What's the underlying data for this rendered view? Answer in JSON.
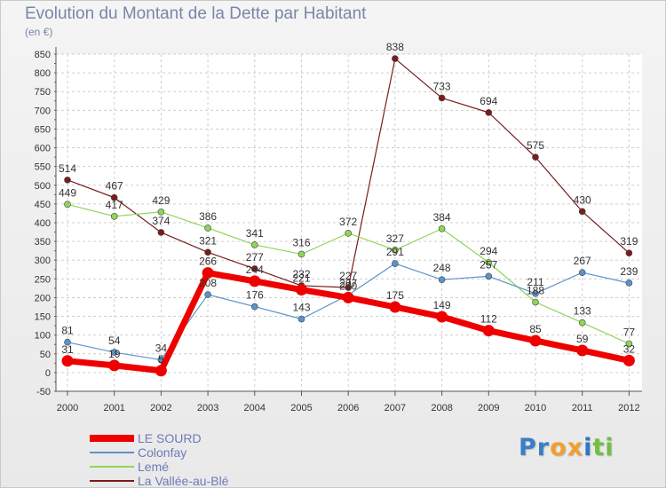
{
  "title": "Evolution du Montant de la Dette par Habitant",
  "unit_label": "(en €)",
  "brand": {
    "letters": [
      "P",
      "r",
      "o",
      "x",
      "i",
      "t",
      "i"
    ],
    "colors": [
      "#3a7ec8",
      "#3a7ec8",
      "#f0a030",
      "#f0a030",
      "#2f74c6",
      "#70c040",
      "#70c040"
    ]
  },
  "chart_data": {
    "type": "line",
    "title": "Evolution du Montant de la Dette par Habitant",
    "ylabel": "(en €)",
    "xlabel": "",
    "x": [
      "2000",
      "2001",
      "2002",
      "2003",
      "2004",
      "2005",
      "2006",
      "2007",
      "2008",
      "2009",
      "2010",
      "2011",
      "2012"
    ],
    "ylim": [
      -50,
      850
    ],
    "yticks": [
      -50,
      0,
      50,
      100,
      150,
      200,
      250,
      300,
      350,
      400,
      450,
      500,
      550,
      600,
      650,
      700,
      750,
      800,
      850
    ],
    "grid": true,
    "legend_position": "bottom-left",
    "series": [
      {
        "name": "LE SOURD",
        "color": "#ee0000",
        "width": 7,
        "marker_r": 6.5,
        "values": [
          31,
          19,
          5,
          266,
          244,
          221,
          200,
          175,
          149,
          112,
          85,
          59,
          32
        ]
      },
      {
        "name": "Colonfay",
        "color": "#5b93c9",
        "width": 1.2,
        "marker_r": 3.5,
        "values": [
          81,
          54,
          34,
          208,
          176,
          143,
          207,
          291,
          248,
          257,
          211,
          267,
          239
        ]
      },
      {
        "name": "Lemé",
        "color": "#8ed65a",
        "width": 1.2,
        "marker_r": 3.5,
        "values": [
          449,
          417,
          429,
          386,
          341,
          316,
          372,
          327,
          384,
          294,
          188,
          133,
          77
        ]
      },
      {
        "name": "La Vallée-au-Blé",
        "color": "#7a1c1c",
        "width": 1.2,
        "marker_r": 3.5,
        "values": [
          514,
          467,
          374,
          321,
          277,
          232,
          227,
          838,
          733,
          694,
          575,
          430,
          319
        ]
      }
    ]
  }
}
